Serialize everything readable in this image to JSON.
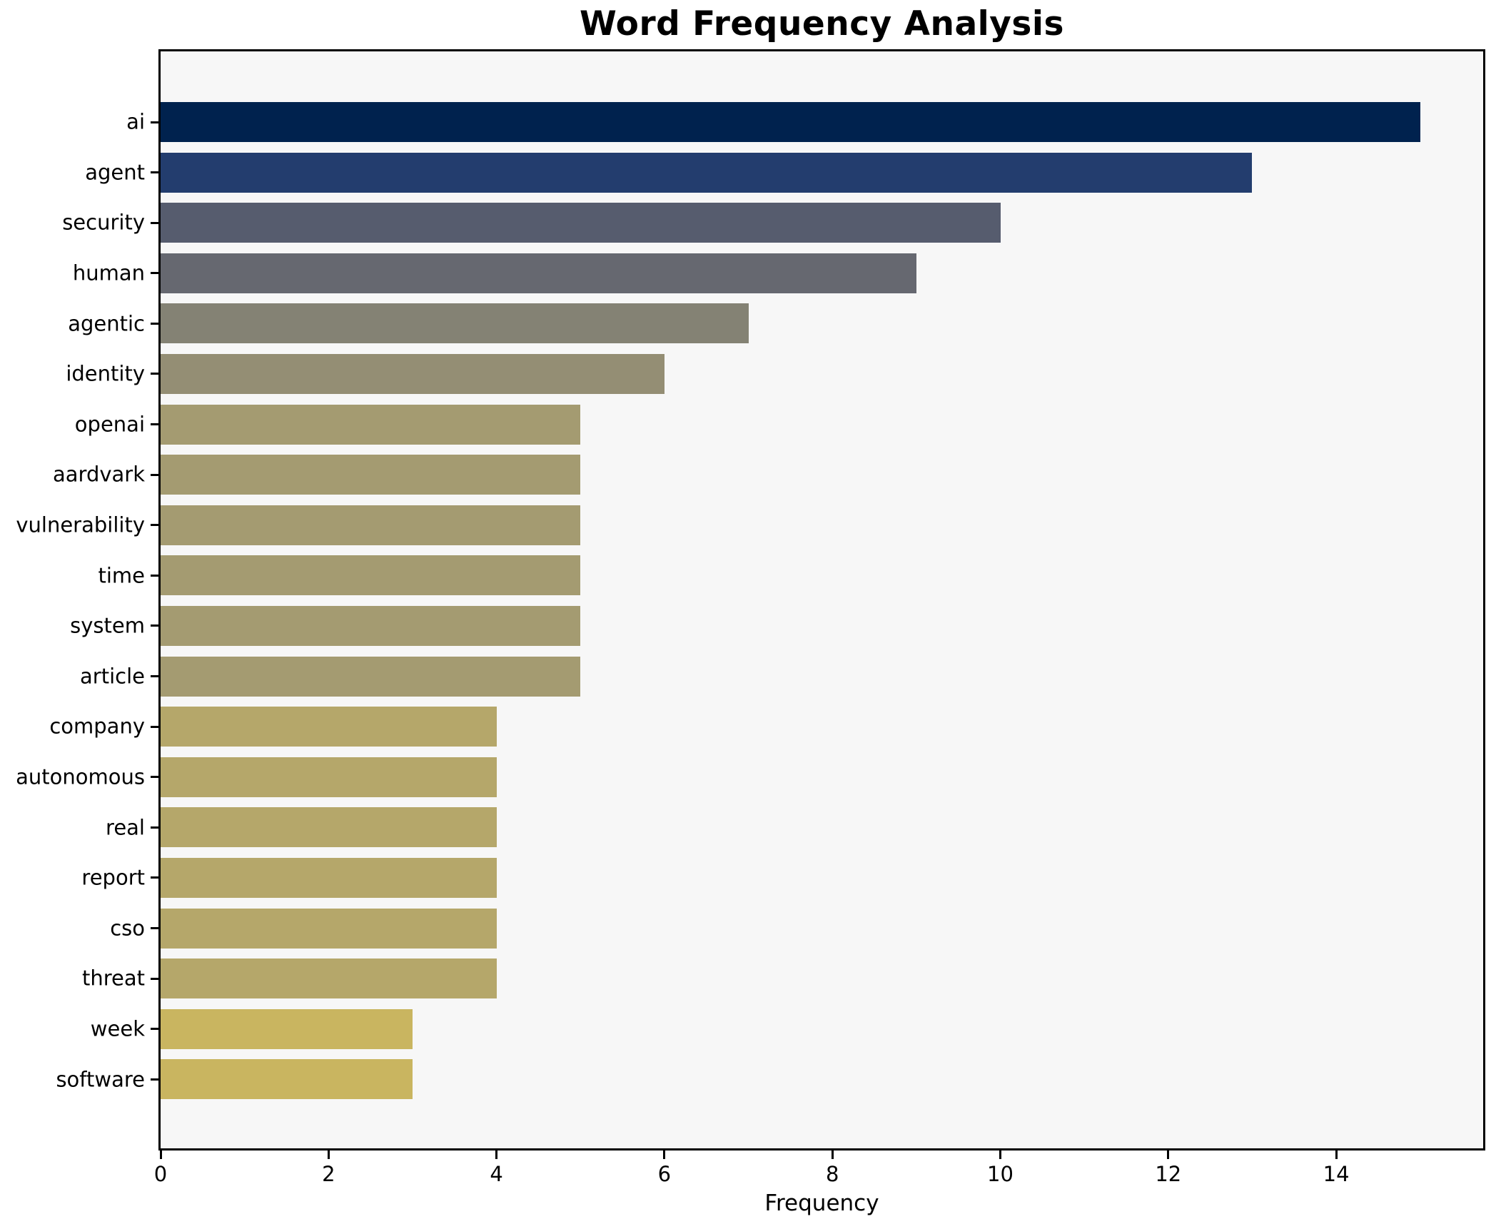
{
  "chart_data": {
    "type": "bar",
    "orientation": "horizontal",
    "title": "Word Frequency Analysis",
    "xlabel": "Frequency",
    "ylabel": "",
    "categories": [
      "ai",
      "agent",
      "security",
      "human",
      "agentic",
      "identity",
      "openai",
      "aardvark",
      "vulnerability",
      "time",
      "system",
      "article",
      "company",
      "autonomous",
      "real",
      "report",
      "cso",
      "threat",
      "week",
      "software"
    ],
    "values": [
      15,
      13,
      10,
      9,
      7,
      6,
      5,
      5,
      5,
      5,
      5,
      5,
      4,
      4,
      4,
      4,
      4,
      4,
      3,
      3
    ],
    "bar_colors": [
      "#00224e",
      "#233d6e",
      "#565c6e",
      "#666870",
      "#848274",
      "#948e74",
      "#a49b71",
      "#a49b71",
      "#a49b71",
      "#a49b71",
      "#a49b71",
      "#a49b71",
      "#b5a76a",
      "#b5a76a",
      "#b5a76a",
      "#b5a76a",
      "#b5a76a",
      "#b5a76a",
      "#c9b560",
      "#c9b560"
    ],
    "colormap": "cividis",
    "xlim": [
      0,
      15.75
    ],
    "x_ticks": [
      0,
      2,
      4,
      6,
      8,
      10,
      12,
      14
    ],
    "grid": false,
    "legend": "none",
    "plot_bg": "#f7f7f7",
    "figure_bg": "#ffffff",
    "spine_color": "#000000"
  }
}
